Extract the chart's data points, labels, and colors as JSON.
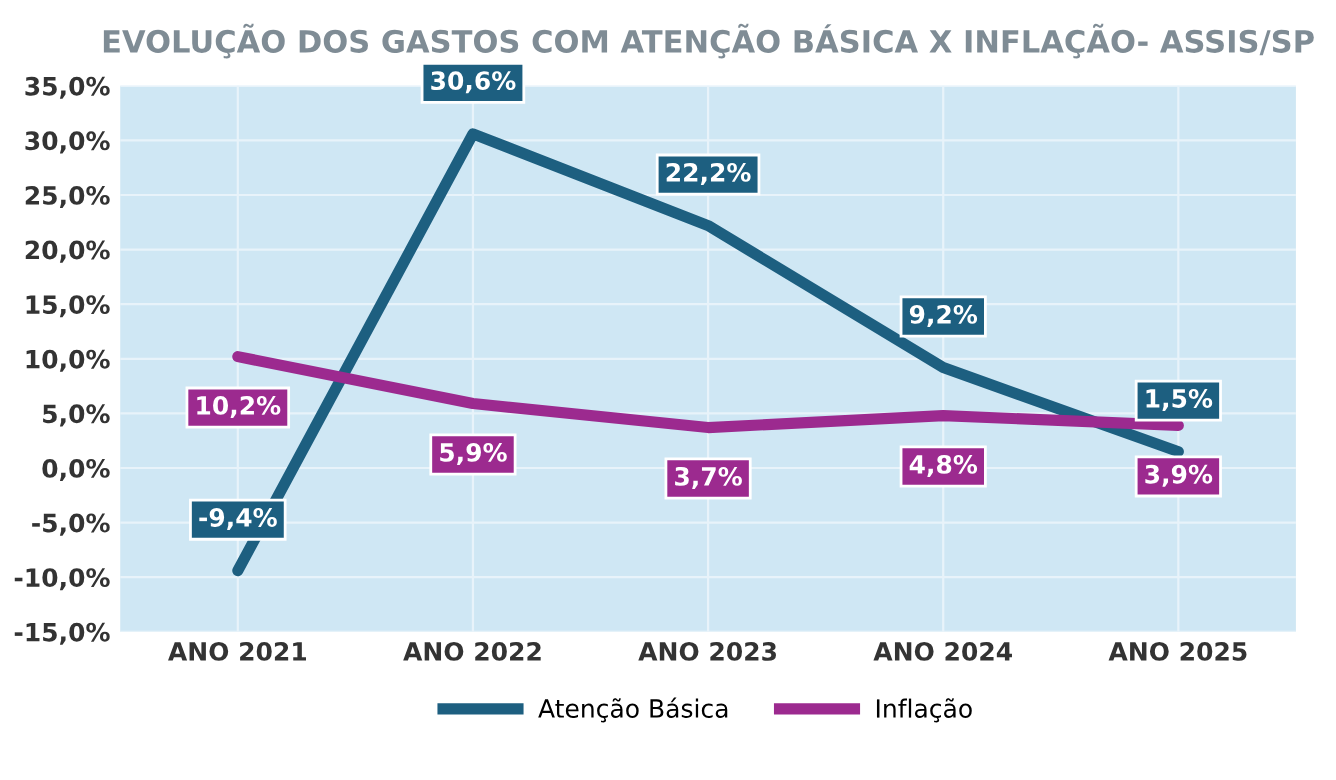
{
  "chart_data": {
    "type": "line",
    "title": "EVOLUÇÃO DOS GASTOS COM ATENÇÃO BÁSICA X INFLAÇÃO- ASSIS/SP",
    "categories": [
      "ANO 2021",
      "ANO 2022",
      "ANO 2023",
      "ANO 2024",
      "ANO 2025"
    ],
    "series": [
      {
        "name": "Atenção Básica",
        "color": "#1d5f80",
        "values": [
          -9.4,
          30.6,
          22.2,
          9.2,
          1.5
        ],
        "value_labels": [
          "-9,4%",
          "30,6%",
          "22,2%",
          "9,2%",
          "1,5%"
        ]
      },
      {
        "name": "Inflação",
        "color": "#9c2a8f",
        "values": [
          10.2,
          5.9,
          3.7,
          4.8,
          3.9
        ],
        "value_labels": [
          "10,2%",
          "5,9%",
          "3,7%",
          "4,8%",
          "3,9%"
        ]
      }
    ],
    "ylim": [
      -15,
      35
    ],
    "yticks": [
      {
        "value": -15,
        "label": "-15,0%"
      },
      {
        "value": -10,
        "label": "-10,0%"
      },
      {
        "value": -5,
        "label": "-5,0%"
      },
      {
        "value": 0,
        "label": "0,0%"
      },
      {
        "value": 5,
        "label": "5,0%"
      },
      {
        "value": 10,
        "label": "10,0%"
      },
      {
        "value": 15,
        "label": "15,0%"
      },
      {
        "value": 20,
        "label": "20,0%"
      },
      {
        "value": 25,
        "label": "25,0%"
      },
      {
        "value": 30,
        "label": "30,0%"
      },
      {
        "value": 35,
        "label": "35,0%"
      }
    ],
    "grid": true,
    "legend": "bottom",
    "marker": "none",
    "line_style": "solid"
  }
}
